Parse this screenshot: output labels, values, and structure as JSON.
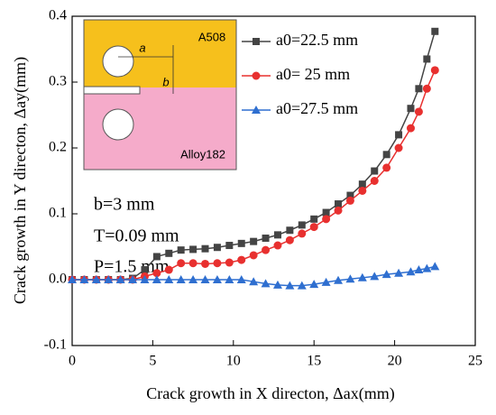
{
  "chart_data": {
    "type": "line",
    "x_label": "Crack growth in X directon, Δax(mm)",
    "y_label": "Crack growth in Y directon, Δay(mm)",
    "annotations": [
      "b=3 mm",
      "T=0.09 mm",
      "P=1.5 mm"
    ],
    "inset_labels": [
      "A508",
      "Alloy182",
      "a",
      "b"
    ],
    "x": [
      0,
      0.75,
      1.5,
      2.25,
      3,
      3.75,
      4.5,
      5.25,
      6,
      6.75,
      7.5,
      8.25,
      9,
      9.75,
      10.5,
      11.25,
      12,
      12.75,
      13.5,
      14.25,
      15,
      15.75,
      16.5,
      17.25,
      18,
      18.75,
      19.5,
      20.25,
      21,
      21.5,
      22,
      22.5
    ],
    "series": [
      {
        "name": "a0=22.5 mm",
        "color": "#444444",
        "marker": "square",
        "values": [
          0,
          0,
          0,
          0,
          0,
          0.002,
          0.015,
          0.035,
          0.04,
          0.045,
          0.046,
          0.047,
          0.049,
          0.052,
          0.055,
          0.058,
          0.063,
          0.068,
          0.075,
          0.083,
          0.092,
          0.102,
          0.115,
          0.128,
          0.145,
          0.165,
          0.19,
          0.22,
          0.26,
          0.29,
          0.335,
          0.377
        ]
      },
      {
        "name": "a0= 25   mm",
        "color": "#e8302f",
        "marker": "circle",
        "values": [
          0,
          0,
          0,
          0,
          0,
          0,
          0.005,
          0.01,
          0.015,
          0.025,
          0.025,
          0.024,
          0.025,
          0.026,
          0.03,
          0.037,
          0.045,
          0.052,
          0.06,
          0.07,
          0.08,
          0.092,
          0.105,
          0.12,
          0.135,
          0.15,
          0.17,
          0.2,
          0.23,
          0.255,
          0.29,
          0.318
        ]
      },
      {
        "name": "a0=27.5 mm",
        "color": "#2f6fd0",
        "marker": "triangle",
        "values": [
          0,
          0,
          0,
          0,
          0,
          0,
          0,
          0,
          0,
          0,
          0,
          0,
          0,
          0,
          0,
          -0.003,
          -0.006,
          -0.008,
          -0.009,
          -0.009,
          -0.007,
          -0.004,
          -0.001,
          0.001,
          0.003,
          0.005,
          0.008,
          0.01,
          0.012,
          0.015,
          0.017,
          0.02
        ]
      }
    ],
    "xlim": [
      0,
      25
    ],
    "xticks": [
      0,
      5,
      10,
      15,
      20,
      25
    ],
    "ylim": [
      -0.1,
      0.4
    ],
    "yticks": [
      -0.1,
      {
        "value": 0,
        "label": "0.0"
      },
      0.1,
      0.2,
      0.3,
      0.4
    ],
    "grid": false
  }
}
